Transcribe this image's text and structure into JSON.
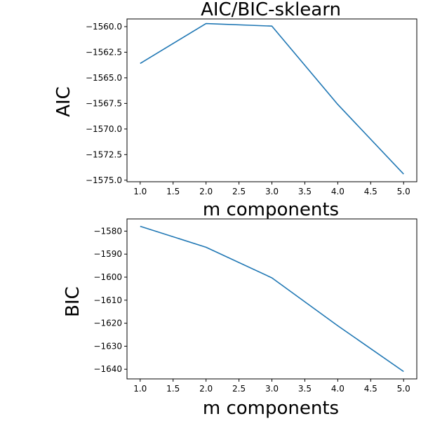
{
  "chart_data": [
    {
      "type": "line",
      "title": "AIC/BIC-sklearn",
      "xlabel": "m components",
      "ylabel": "AIC",
      "x": [
        1.0,
        2.0,
        3.0,
        4.0,
        5.0
      ],
      "series": [
        {
          "values": [
            -1563.6,
            -1559.7,
            -1559.95,
            -1567.6,
            -1574.4
          ]
        }
      ],
      "xlim": [
        0.8,
        5.2
      ],
      "ylim": [
        -1575.15,
        -1559.25
      ],
      "xticks": [
        1.0,
        1.5,
        2.0,
        2.5,
        3.0,
        3.5,
        4.0,
        4.5,
        5.0
      ],
      "xtick_labels": [
        "1.0",
        "1.5",
        "2.0",
        "2.5",
        "3.0",
        "3.5",
        "4.0",
        "4.5",
        "5.0"
      ],
      "yticks": [
        -1560.0,
        -1562.5,
        -1565.0,
        -1567.5,
        -1570.0,
        -1572.5,
        -1575.0
      ],
      "ytick_labels": [
        "−1560.0",
        "−1562.5",
        "−1565.0",
        "−1567.5",
        "−1570.0",
        "−1572.5",
        "−1575.0"
      ],
      "grid": false,
      "color": "#1f77b4"
    },
    {
      "type": "line",
      "title": "",
      "xlabel": "m components",
      "ylabel": "BIC",
      "x": [
        1.0,
        2.0,
        3.0,
        4.0,
        5.0
      ],
      "series": [
        {
          "values": [
            -1577.9,
            -1587.0,
            -1600.3,
            -1621.1,
            -1641.0
          ]
        }
      ],
      "xlim": [
        0.8,
        5.2
      ],
      "ylim": [
        -1644.2,
        -1574.7
      ],
      "xticks": [
        1.0,
        1.5,
        2.0,
        2.5,
        3.0,
        3.5,
        4.0,
        4.5,
        5.0
      ],
      "xtick_labels": [
        "1.0",
        "1.5",
        "2.0",
        "2.5",
        "3.0",
        "3.5",
        "4.0",
        "4.5",
        "5.0"
      ],
      "yticks": [
        -1580,
        -1590,
        -1600,
        -1610,
        -1620,
        -1630,
        -1640
      ],
      "ytick_labels": [
        "−1580",
        "−1590",
        "−1600",
        "−1610",
        "−1620",
        "−1630",
        "−1640"
      ],
      "grid": false,
      "color": "#1f77b4"
    }
  ]
}
